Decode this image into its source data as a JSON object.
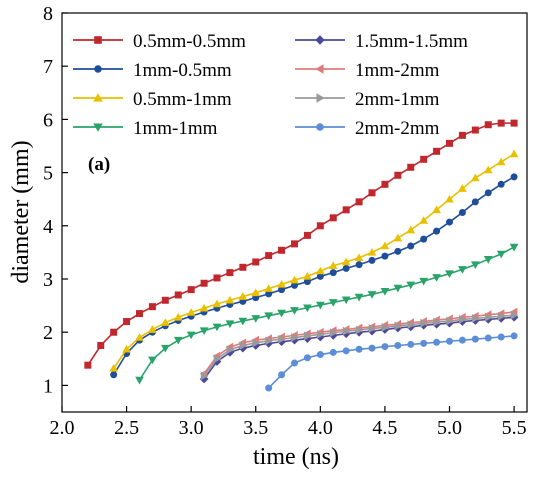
{
  "chart_data": {
    "type": "line",
    "panel_label": "(a)",
    "xlabel": "time (ns)",
    "ylabel": "diameter (mm)",
    "xlim": [
      2.0,
      5.6
    ],
    "ylim": [
      0.5,
      8.0
    ],
    "xticks": [
      "2.0",
      "2.5",
      "3.0",
      "3.5",
      "4.0",
      "4.5",
      "5.0",
      "5.5"
    ],
    "yticks": [
      "1",
      "2",
      "3",
      "4",
      "5",
      "6",
      "7",
      "8"
    ],
    "grid": false,
    "legend_position": "top",
    "series": [
      {
        "name": "0.5mm-0.5mm",
        "color": "#c0282d",
        "marker": "square",
        "x": [
          2.2,
          2.3,
          2.4,
          2.5,
          2.6,
          2.7,
          2.8,
          2.9,
          3.0,
          3.1,
          3.2,
          3.3,
          3.4,
          3.5,
          3.6,
          3.7,
          3.8,
          3.9,
          4.0,
          4.1,
          4.2,
          4.3,
          4.4,
          4.5,
          4.6,
          4.7,
          4.8,
          4.9,
          5.0,
          5.1,
          5.2,
          5.3,
          5.4,
          5.5
        ],
        "y": [
          1.38,
          1.75,
          2.0,
          2.2,
          2.35,
          2.48,
          2.6,
          2.7,
          2.8,
          2.92,
          3.02,
          3.12,
          3.22,
          3.32,
          3.44,
          3.54,
          3.66,
          3.82,
          4.0,
          4.15,
          4.3,
          4.45,
          4.62,
          4.78,
          4.95,
          5.1,
          5.25,
          5.4,
          5.55,
          5.7,
          5.8,
          5.9,
          5.93,
          5.93
        ]
      },
      {
        "name": "1mm-0.5mm",
        "color": "#1f4e99",
        "marker": "circle",
        "x": [
          2.4,
          2.5,
          2.6,
          2.7,
          2.8,
          2.9,
          3.0,
          3.1,
          3.2,
          3.3,
          3.4,
          3.5,
          3.6,
          3.7,
          3.8,
          3.9,
          4.0,
          4.1,
          4.2,
          4.3,
          4.4,
          4.5,
          4.6,
          4.7,
          4.8,
          4.9,
          5.0,
          5.1,
          5.2,
          5.3,
          5.4,
          5.5
        ],
        "y": [
          1.2,
          1.6,
          1.85,
          2.0,
          2.12,
          2.22,
          2.3,
          2.38,
          2.45,
          2.52,
          2.58,
          2.65,
          2.72,
          2.8,
          2.88,
          2.95,
          3.05,
          3.12,
          3.2,
          3.27,
          3.35,
          3.43,
          3.52,
          3.62,
          3.75,
          3.9,
          4.07,
          4.25,
          4.45,
          4.62,
          4.78,
          4.92
        ]
      },
      {
        "name": "0.5mm-1mm",
        "color": "#e8c000",
        "marker": "triangle-up",
        "x": [
          2.4,
          2.5,
          2.6,
          2.7,
          2.8,
          2.9,
          3.0,
          3.1,
          3.2,
          3.3,
          3.4,
          3.5,
          3.6,
          3.7,
          3.8,
          3.9,
          4.0,
          4.1,
          4.2,
          4.3,
          4.4,
          4.5,
          4.6,
          4.7,
          4.8,
          4.9,
          5.0,
          5.1,
          5.2,
          5.3,
          5.4,
          5.5
        ],
        "y": [
          1.32,
          1.68,
          1.9,
          2.05,
          2.18,
          2.28,
          2.37,
          2.45,
          2.53,
          2.6,
          2.67,
          2.74,
          2.82,
          2.9,
          2.98,
          3.05,
          3.15,
          3.25,
          3.32,
          3.4,
          3.5,
          3.62,
          3.77,
          3.92,
          4.1,
          4.3,
          4.5,
          4.7,
          4.9,
          5.05,
          5.2,
          5.35
        ]
      },
      {
        "name": "1mm-1mm",
        "color": "#2aa36b",
        "marker": "triangle-down",
        "x": [
          2.6,
          2.7,
          2.8,
          2.9,
          3.0,
          3.1,
          3.2,
          3.3,
          3.4,
          3.5,
          3.6,
          3.7,
          3.8,
          3.9,
          4.0,
          4.1,
          4.2,
          4.3,
          4.4,
          4.5,
          4.6,
          4.7,
          4.8,
          4.9,
          5.0,
          5.1,
          5.2,
          5.3,
          5.4,
          5.5
        ],
        "y": [
          1.1,
          1.48,
          1.7,
          1.85,
          1.95,
          2.03,
          2.1,
          2.16,
          2.21,
          2.26,
          2.31,
          2.36,
          2.41,
          2.46,
          2.51,
          2.56,
          2.61,
          2.66,
          2.71,
          2.77,
          2.83,
          2.89,
          2.96,
          3.03,
          3.1,
          3.18,
          3.27,
          3.37,
          3.47,
          3.6
        ]
      },
      {
        "name": "1.5mm-1.5mm",
        "color": "#4a4a9c",
        "marker": "diamond",
        "x": [
          3.1,
          3.2,
          3.3,
          3.4,
          3.5,
          3.6,
          3.7,
          3.8,
          3.9,
          4.0,
          4.1,
          4.2,
          4.3,
          4.4,
          4.5,
          4.6,
          4.7,
          4.8,
          4.9,
          5.0,
          5.1,
          5.2,
          5.3,
          5.4,
          5.5
        ],
        "y": [
          1.12,
          1.45,
          1.62,
          1.7,
          1.75,
          1.79,
          1.82,
          1.85,
          1.88,
          1.91,
          1.94,
          1.97,
          2.0,
          2.02,
          2.05,
          2.08,
          2.1,
          2.13,
          2.15,
          2.17,
          2.2,
          2.22,
          2.24,
          2.26,
          2.28
        ]
      },
      {
        "name": "1mm-2mm",
        "color": "#e07b7b",
        "marker": "triangle-left",
        "x": [
          3.1,
          3.2,
          3.3,
          3.4,
          3.5,
          3.6,
          3.7,
          3.8,
          3.9,
          4.0,
          4.1,
          4.2,
          4.3,
          4.4,
          4.5,
          4.6,
          4.7,
          4.8,
          4.9,
          5.0,
          5.1,
          5.2,
          5.3,
          5.4,
          5.5
        ],
        "y": [
          1.22,
          1.55,
          1.72,
          1.8,
          1.85,
          1.88,
          1.91,
          1.94,
          1.97,
          2.0,
          2.03,
          2.05,
          2.08,
          2.1,
          2.13,
          2.15,
          2.18,
          2.2,
          2.23,
          2.25,
          2.28,
          2.3,
          2.33,
          2.35,
          2.38
        ]
      },
      {
        "name": "2mm-1mm",
        "color": "#9a9a9a",
        "marker": "triangle-right",
        "x": [
          3.1,
          3.2,
          3.3,
          3.4,
          3.5,
          3.6,
          3.7,
          3.8,
          3.9,
          4.0,
          4.1,
          4.2,
          4.3,
          4.4,
          4.5,
          4.6,
          4.7,
          4.8,
          4.9,
          5.0,
          5.1,
          5.2,
          5.3,
          5.4,
          5.5
        ],
        "y": [
          1.18,
          1.5,
          1.67,
          1.75,
          1.8,
          1.84,
          1.87,
          1.9,
          1.93,
          1.96,
          1.99,
          2.02,
          2.04,
          2.07,
          2.09,
          2.12,
          2.14,
          2.17,
          2.19,
          2.21,
          2.24,
          2.26,
          2.28,
          2.3,
          2.32
        ]
      },
      {
        "name": "2mm-2mm",
        "color": "#5b8ed6",
        "marker": "circle",
        "x": [
          3.6,
          3.7,
          3.8,
          3.9,
          4.0,
          4.1,
          4.2,
          4.3,
          4.4,
          4.5,
          4.6,
          4.7,
          4.8,
          4.9,
          5.0,
          5.1,
          5.2,
          5.3,
          5.4,
          5.5
        ],
        "y": [
          0.95,
          1.2,
          1.42,
          1.52,
          1.58,
          1.62,
          1.65,
          1.68,
          1.7,
          1.73,
          1.75,
          1.77,
          1.79,
          1.81,
          1.83,
          1.85,
          1.87,
          1.89,
          1.91,
          1.93
        ]
      }
    ]
  }
}
